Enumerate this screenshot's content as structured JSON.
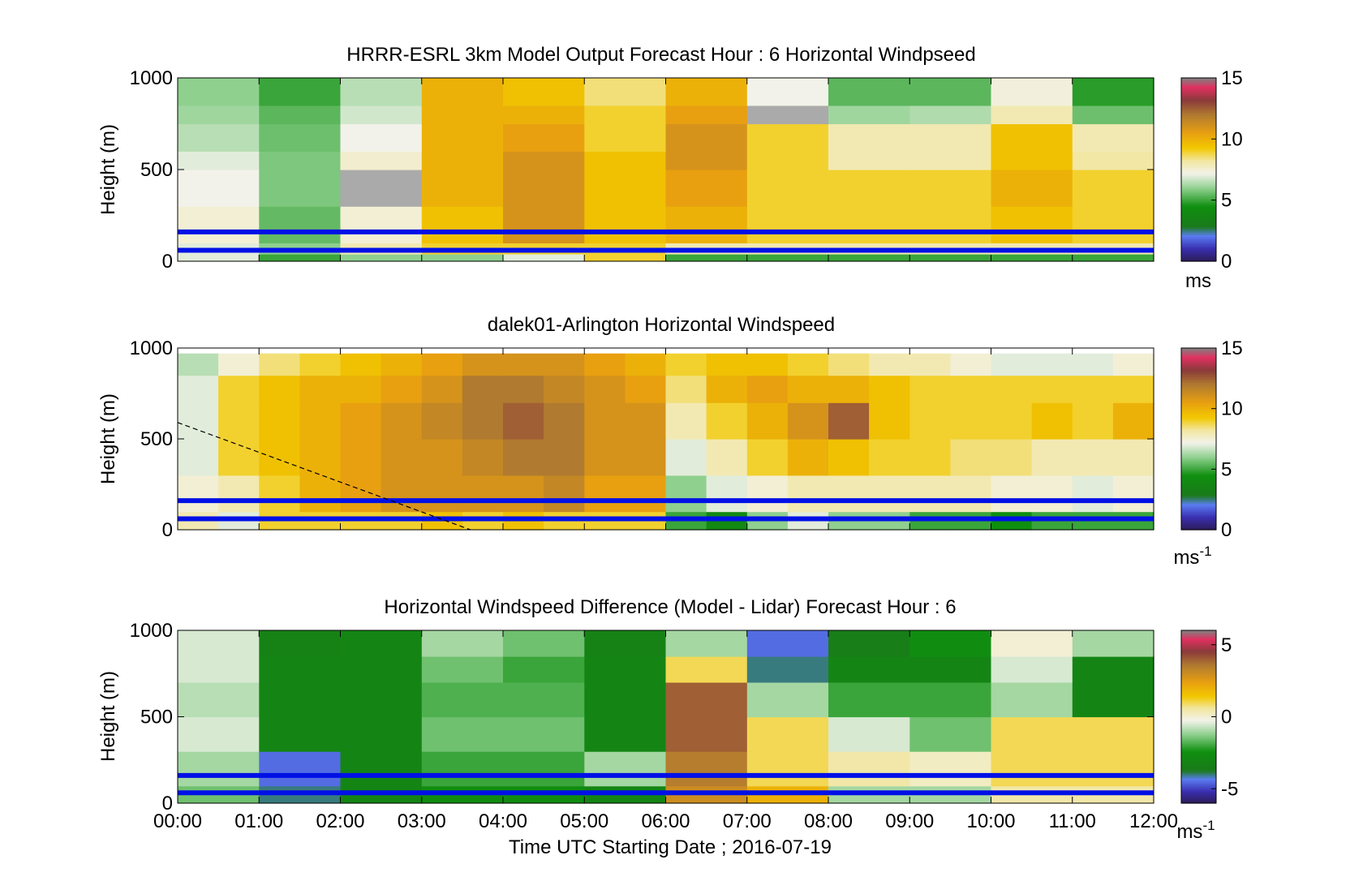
{
  "figure": {
    "xlabel": "Time UTC  Starting Date ; 2016-07-19",
    "xticks": [
      "00:00",
      "01:00",
      "02:00",
      "03:00",
      "04:00",
      "05:00",
      "06:00",
      "07:00",
      "08:00",
      "09:00",
      "10:00",
      "11:00",
      "12:00"
    ]
  },
  "chart_data": [
    {
      "type": "heatmap",
      "title": "HRRR-ESRL 3km Model Output   Forecast Hour : 6 Horizontal Windpseed",
      "ylabel": "Height (m)",
      "xlim": [
        0,
        12
      ],
      "ylim": [
        0,
        1000
      ],
      "yticks": [
        "0",
        "500",
        "1000"
      ],
      "colorbar": {
        "unit": "ms",
        "unit_sup": "",
        "ticks": [
          "0",
          "5",
          "10",
          "15"
        ],
        "range": [
          0,
          15
        ]
      },
      "reference_lines_m": [
        60,
        160
      ],
      "dashed_line": null,
      "column_hours": [
        0,
        1,
        2,
        3,
        4,
        5,
        6,
        7,
        8,
        9,
        10,
        11
      ],
      "rows": [
        {
          "h": [
            0,
            40
          ],
          "v": [
            7,
            5,
            6,
            6,
            7,
            9,
            5,
            5,
            5,
            5,
            5,
            5
          ]
        },
        {
          "h": [
            40,
            100
          ],
          "v": [
            7,
            6,
            8,
            9,
            9,
            9,
            8,
            8,
            8,
            8,
            8,
            8
          ]
        },
        {
          "h": [
            100,
            300
          ],
          "v": [
            7.5,
            5.5,
            7.5,
            9.5,
            11,
            9.5,
            10,
            9,
            9,
            9,
            9.5,
            9
          ]
        },
        {
          "h": [
            300,
            500
          ],
          "v": [
            7.2,
            5.8,
            "na",
            10,
            11,
            9.5,
            10.5,
            9,
            9,
            9,
            10,
            9
          ]
        },
        {
          "h": [
            500,
            600
          ],
          "v": [
            7,
            5.8,
            7.6,
            10,
            11,
            9.5,
            11,
            9,
            8,
            8,
            9.5,
            8.2
          ]
        },
        {
          "h": [
            600,
            750
          ],
          "v": [
            6.5,
            5.6,
            7.2,
            10,
            10.5,
            9,
            11,
            9,
            8,
            8,
            9.5,
            8
          ]
        },
        {
          "h": [
            750,
            850
          ],
          "v": [
            6.2,
            5.4,
            6.8,
            10,
            10,
            9,
            10.5,
            "na",
            6.2,
            6.4,
            8,
            5.6
          ]
        },
        {
          "h": [
            850,
            1000
          ],
          "v": [
            6,
            5,
            6.5,
            10,
            9.5,
            8.5,
            10,
            7.2,
            5.4,
            5.4,
            7.4,
            4.8
          ]
        }
      ]
    },
    {
      "type": "heatmap",
      "title": "dalek01-Arlington  Horizontal Windspeed",
      "ylabel": "Height (m)",
      "xlim": [
        0,
        12
      ],
      "ylim": [
        0,
        1000
      ],
      "yticks": [
        "0",
        "500",
        "1000"
      ],
      "colorbar": {
        "unit": "ms",
        "unit_sup": "-1",
        "ticks": [
          "0",
          "5",
          "10",
          "15"
        ],
        "range": [
          0,
          15
        ]
      },
      "reference_lines_m": [
        60,
        160
      ],
      "dashed_line": {
        "x": [
          0,
          3.6
        ],
        "y": [
          590,
          0
        ]
      },
      "column_hours": [
        0,
        0.5,
        1,
        1.5,
        2,
        2.5,
        3,
        3.5,
        4,
        4.5,
        5,
        5.5,
        6,
        6.5,
        7,
        7.5,
        8,
        8.5,
        9,
        9.5,
        10,
        10.5,
        11,
        11.5
      ],
      "rows": [
        {
          "h": [
            0,
            100
          ],
          "v": [
            8,
            7,
            9,
            9,
            9,
            9,
            9.5,
            9,
            9.5,
            9,
            9,
            9,
            5,
            4,
            6,
            7,
            6,
            6,
            5,
            5,
            4.5,
            5,
            5,
            5
          ]
        },
        {
          "h": [
            100,
            300
          ],
          "v": [
            7.5,
            8,
            9,
            10,
            10.5,
            11,
            11,
            11,
            11,
            11.5,
            10.5,
            10.5,
            6,
            7,
            7.5,
            8,
            8,
            8,
            8,
            8,
            7.5,
            7.5,
            7,
            7.5
          ]
        },
        {
          "h": [
            300,
            500
          ],
          "v": [
            7,
            9,
            9.5,
            10,
            10.5,
            11,
            11,
            11.5,
            12,
            12,
            11,
            11,
            7,
            8,
            9,
            10,
            9.5,
            9,
            9,
            8.5,
            8.5,
            8,
            8,
            8
          ]
        },
        {
          "h": [
            500,
            700
          ],
          "v": [
            7,
            9,
            9.5,
            10,
            10.5,
            11,
            11.5,
            12,
            12.5,
            12,
            11,
            11,
            8,
            9,
            10,
            11,
            12.5,
            9.5,
            9,
            9,
            9,
            9.5,
            9,
            10
          ]
        },
        {
          "h": [
            700,
            850
          ],
          "v": [
            7,
            9,
            9.5,
            10,
            10,
            10.5,
            11,
            12,
            12,
            11.5,
            11,
            10.5,
            8.5,
            10,
            10.5,
            10,
            10,
            9.5,
            9,
            9,
            9,
            9,
            9,
            9
          ]
        },
        {
          "h": [
            850,
            970
          ],
          "v": [
            6.5,
            7.5,
            8.5,
            9,
            9.5,
            10,
            10.5,
            11,
            11,
            11,
            10.5,
            10,
            9,
            9.5,
            9.5,
            9,
            8.5,
            8,
            8,
            7.5,
            7,
            7,
            7,
            7.5
          ]
        }
      ]
    },
    {
      "type": "heatmap",
      "title": "Horizontal Windspeed Difference (Model - Lidar) Forecast Hour : 6",
      "ylabel": "Height (m)",
      "xlim": [
        0,
        12
      ],
      "ylim": [
        0,
        1000
      ],
      "yticks": [
        "0",
        "500",
        "1000"
      ],
      "colorbar": {
        "unit": "ms",
        "unit_sup": "-1",
        "ticks": [
          "-5",
          "0",
          "5"
        ],
        "range": [
          -6,
          6
        ]
      },
      "reference_lines_m": [
        60,
        160
      ],
      "dashed_line": null,
      "column_hours": [
        0,
        1,
        2,
        3,
        4,
        5,
        6,
        7,
        8,
        9,
        10,
        11
      ],
      "rows": [
        {
          "h": [
            0,
            100
          ],
          "v": [
            -1.5,
            -4,
            -3,
            -2.5,
            -2.5,
            -3,
            3,
            2,
            -1,
            -1,
            0.5,
            0.5
          ]
        },
        {
          "h": [
            100,
            300
          ],
          "v": [
            -1,
            -4.5,
            -3,
            -2,
            -2,
            -1,
            3.5,
            1,
            0.5,
            0.2,
            1,
            1
          ]
        },
        {
          "h": [
            300,
            500
          ],
          "v": [
            -0.5,
            -3,
            -3,
            -1.5,
            -1.5,
            -3,
            4,
            1,
            -0.5,
            -1.5,
            1,
            1
          ]
        },
        {
          "h": [
            500,
            700
          ],
          "v": [
            -0.8,
            -3,
            -3,
            -1.8,
            -1.8,
            -3,
            4,
            -1,
            -2,
            -2,
            -1,
            -3
          ]
        },
        {
          "h": [
            700,
            850
          ],
          "v": [
            -0.5,
            -3,
            -3,
            -1.5,
            -2,
            -3,
            1,
            -4,
            -3,
            -3,
            -0.5,
            -3
          ]
        },
        {
          "h": [
            850,
            1000
          ],
          "v": [
            -0.5,
            -3.2,
            -3,
            -1,
            -1.5,
            -3.2,
            -1,
            -4.5,
            -3.5,
            -2.5,
            0,
            -1
          ]
        }
      ]
    }
  ]
}
